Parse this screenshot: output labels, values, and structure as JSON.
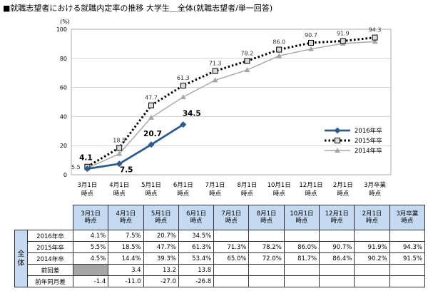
{
  "title": "■就職志望者における就職内定率の推移  大学生＿全体(就職志望者/単一回答)",
  "chart_data": {
    "type": "line",
    "unit_label": "(%)",
    "categories": [
      [
        "3月1日",
        "時点"
      ],
      [
        "4月1日",
        "時点"
      ],
      [
        "5月1日",
        "時点"
      ],
      [
        "6月1日",
        "時点"
      ],
      [
        "7月1日",
        "時点"
      ],
      [
        "8月1日",
        "時点"
      ],
      [
        "10月1日",
        "時点"
      ],
      [
        "12月1日",
        "時点"
      ],
      [
        "2月1日",
        "時点"
      ],
      [
        "3月卒業",
        "時点"
      ]
    ],
    "ylim": [
      0,
      100
    ],
    "yticks": [
      "0",
      "20",
      "40",
      "60",
      "80",
      "100"
    ],
    "grid": true,
    "legend_position": "right",
    "series": [
      {
        "name": "2016年卒",
        "color": "#2e5c8a",
        "marker": "diamond",
        "style": "solid",
        "values": [
          4.1,
          7.5,
          20.7,
          34.5,
          null,
          null,
          null,
          null,
          null,
          null
        ],
        "labels": [
          "4.1",
          "7.5",
          "20.7",
          "34.5",
          "",
          "",
          "",
          "",
          "",
          ""
        ]
      },
      {
        "name": "2015年卒",
        "color": "#000000",
        "marker": "square",
        "style": "dotted",
        "values": [
          5.5,
          18.5,
          47.7,
          61.3,
          71.3,
          78.2,
          86.0,
          90.7,
          91.9,
          94.3
        ],
        "labels": [
          "5.5",
          "18.5",
          "47.7",
          "61.3",
          "71.3",
          "78.2",
          "86.0",
          "90.7",
          "91.9",
          "94.3"
        ]
      },
      {
        "name": "2014年卒",
        "color": "#a6a6a6",
        "marker": "triangle",
        "style": "solid",
        "values": [
          4.5,
          14.4,
          39.3,
          53.4,
          65.0,
          72.0,
          81.7,
          86.4,
          90.2,
          91.5
        ],
        "labels": [
          "",
          "",
          "",
          "",
          "",
          "",
          "",
          "",
          "",
          ""
        ]
      }
    ]
  },
  "table": {
    "headers": [
      [
        "3月1日",
        "時点"
      ],
      [
        "4月1日",
        "時点"
      ],
      [
        "5月1日",
        "時点"
      ],
      [
        "6月1日",
        "時点"
      ],
      [
        "7月1日",
        "時点"
      ],
      [
        "8月1日",
        "時点"
      ],
      [
        "10月1日",
        "時点"
      ],
      [
        "12月1日",
        "時点"
      ],
      [
        "2月1日",
        "時点"
      ],
      [
        "3月卒業",
        "時点"
      ]
    ],
    "group_label": "全体",
    "rows": [
      {
        "label": "2016年卒",
        "cells": [
          "4.1%",
          "7.5%",
          "20.7%",
          "34.5%",
          "",
          "",
          "",
          "",
          "",
          ""
        ]
      },
      {
        "label": "2015年卒",
        "cells": [
          "5.5%",
          "18.5%",
          "47.7%",
          "61.3%",
          "71.3%",
          "78.2%",
          "86.0%",
          "90.7%",
          "91.9%",
          "94.3%"
        ]
      },
      {
        "label": "2014年卒",
        "cells": [
          "4.5%",
          "14.4%",
          "39.3%",
          "53.4%",
          "65.0%",
          "72.0%",
          "81.7%",
          "86.4%",
          "90.2%",
          "91.5%"
        ]
      },
      {
        "label": "前回差",
        "cells": [
          "",
          "3.4",
          "13.2",
          "13.8",
          "",
          "",
          "",
          "",
          "",
          ""
        ],
        "gray_first": true
      },
      {
        "label": "前年同月差",
        "cells": [
          "-1.4",
          "-11.0",
          "-27.0",
          "-26.8",
          "",
          "",
          "",
          "",
          "",
          ""
        ]
      }
    ]
  }
}
